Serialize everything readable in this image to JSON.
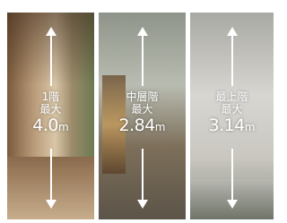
{
  "panels": [
    {
      "floor": "1階",
      "label": "最大",
      "value": "4.0",
      "unit": "m"
    },
    {
      "floor": "中層階",
      "label": "最大",
      "value": "2.84",
      "unit": "m"
    },
    {
      "floor": "最上階",
      "label": "最大",
      "value": "3.14",
      "unit": "m"
    }
  ]
}
